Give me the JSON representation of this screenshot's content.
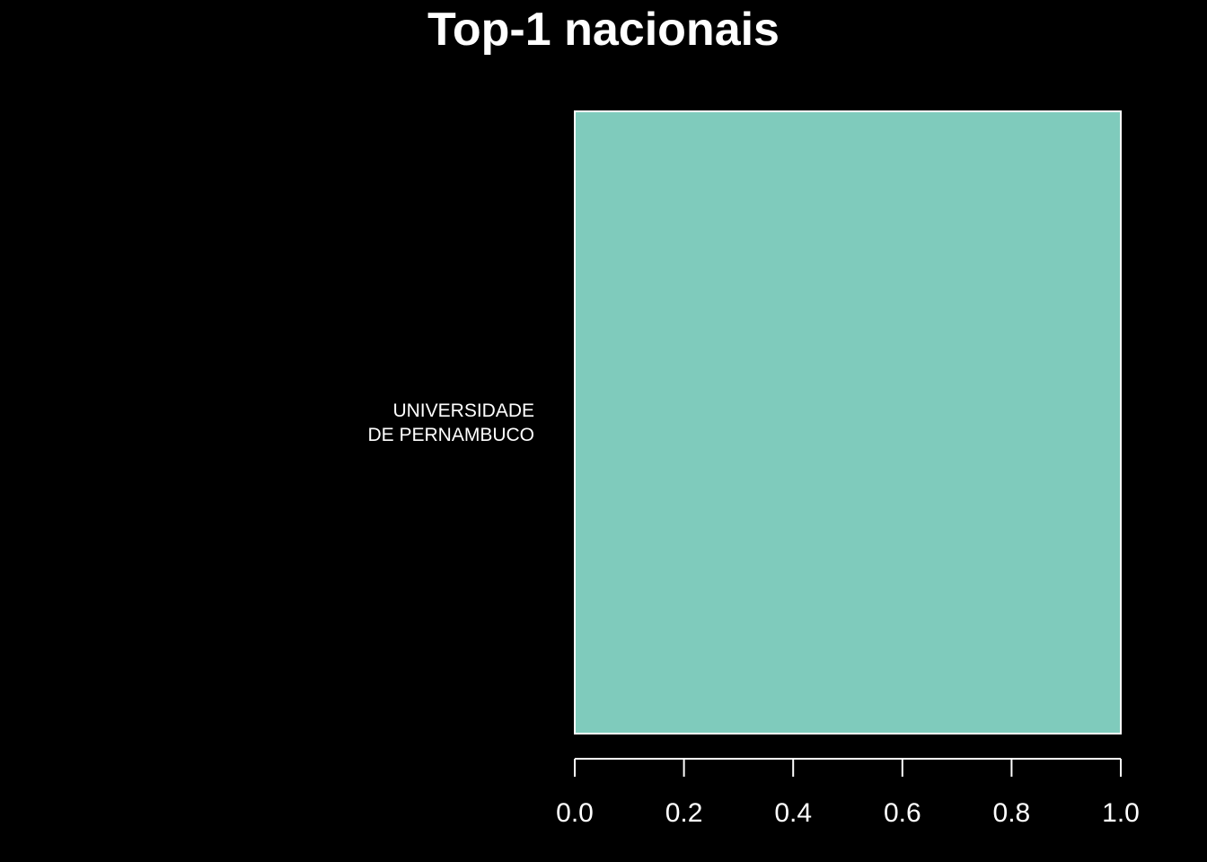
{
  "chart_data": {
    "type": "bar",
    "orientation": "horizontal",
    "title": "Top-1 nacionais",
    "xlabel": "",
    "ylabel": "",
    "categories": [
      "UNIVERSIDADE\nDE PERNAMBUCO"
    ],
    "values": [
      1.0
    ],
    "xlim": [
      0,
      1
    ],
    "x_ticks": [
      "0.0",
      "0.2",
      "0.4",
      "0.6",
      "0.8",
      "1.0"
    ],
    "x_tick_values": [
      0.0,
      0.2,
      0.4,
      0.6,
      0.8,
      1.0
    ],
    "grid": false,
    "legend": "none",
    "colors": {
      "background": "#000000",
      "bar_fill": "#7fcbbc",
      "bar_stroke": "#ffffff",
      "text": "#ffffff",
      "axis": "#ffffff"
    }
  }
}
